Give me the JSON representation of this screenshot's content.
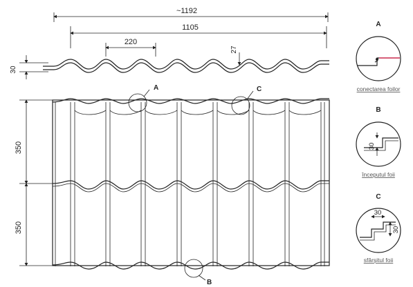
{
  "diagram": {
    "dims": {
      "overall_width": "~1192",
      "effective_width": "1105",
      "wave_step": "220",
      "profile_height": "27",
      "sheet_thickness": "30",
      "tile_length_top": "350",
      "tile_length_bottom": "350"
    },
    "markers": {
      "a": "A",
      "b": "B",
      "c": "C"
    },
    "details": [
      {
        "letter": "A",
        "caption": "conectarea foilor",
        "dim1": "",
        "dim2": ""
      },
      {
        "letter": "B",
        "caption": "începutul foii",
        "dim1": "30",
        "dim2": ""
      },
      {
        "letter": "C",
        "caption": "sfârșitul foii",
        "dim1": "30",
        "dim2": "30"
      }
    ],
    "colors": {
      "line": "#222222",
      "accent": "#e0204a",
      "caption": "#555555"
    }
  }
}
